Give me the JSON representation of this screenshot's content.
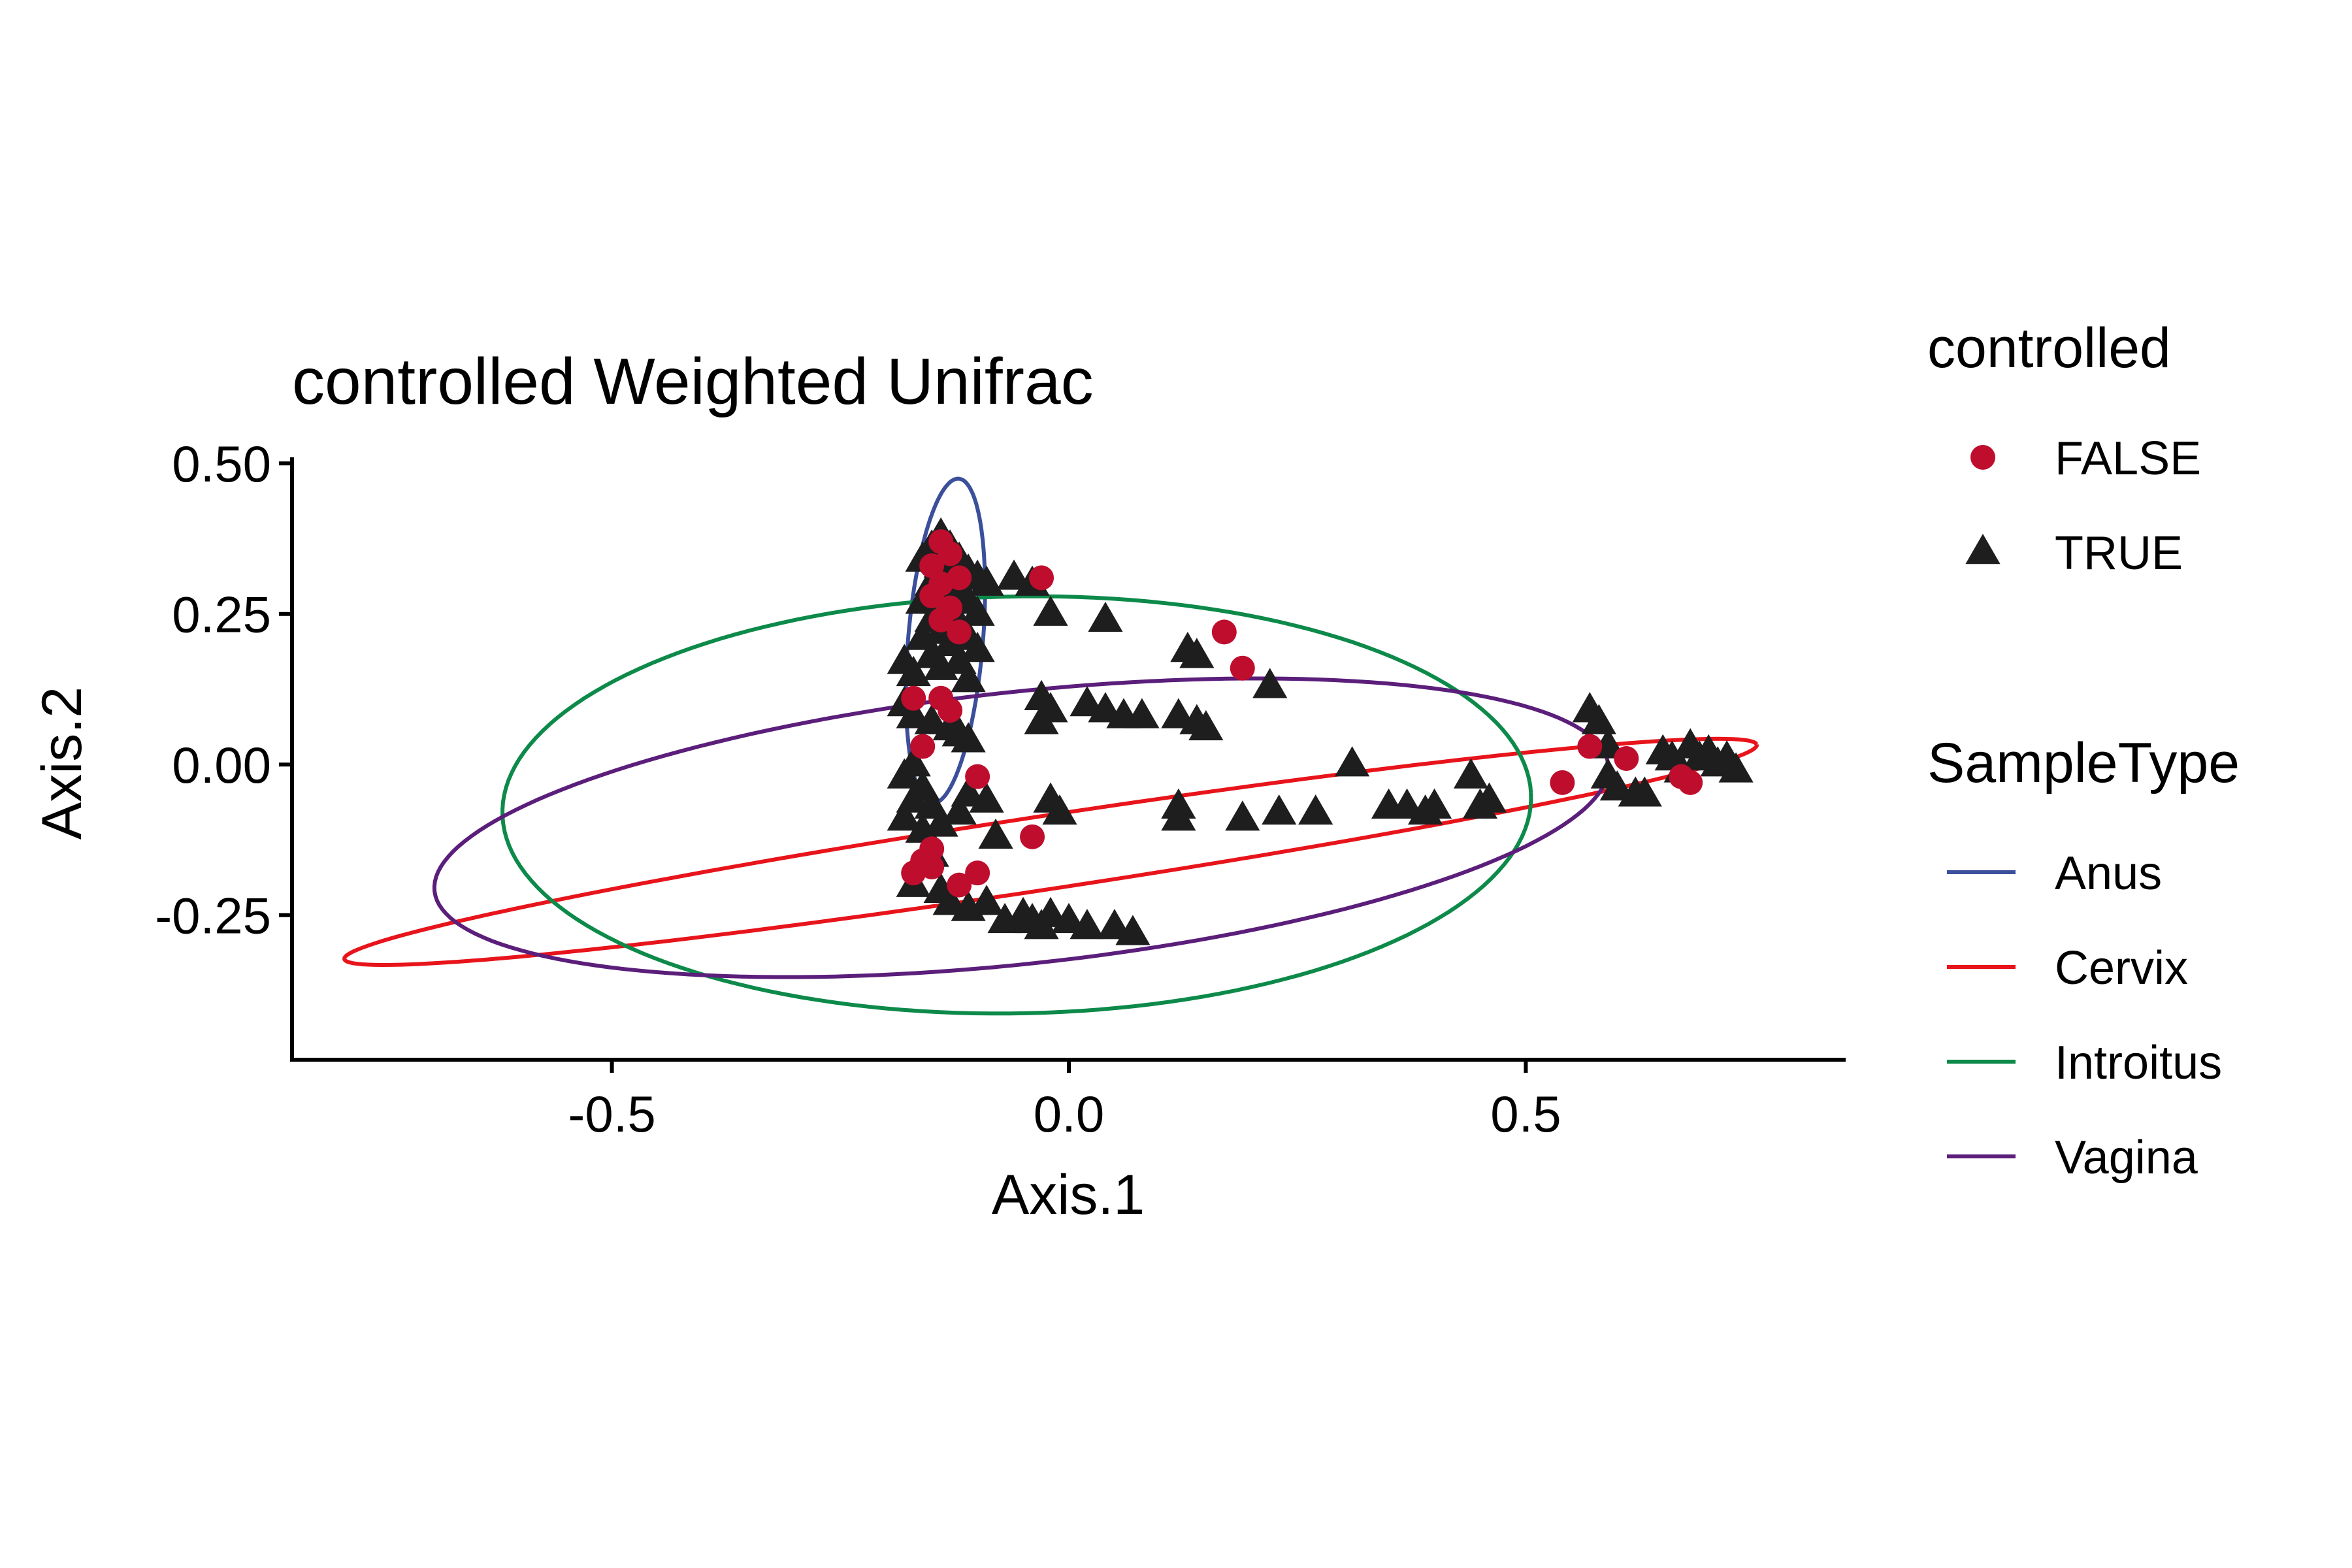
{
  "chart_data": {
    "type": "scatter",
    "title": "controlled Weighted Unifrac",
    "xlabel": "Axis.1",
    "ylabel": "Axis.2",
    "xlim": [
      -0.85,
      0.85
    ],
    "ylim": [
      -0.49,
      0.51
    ],
    "xticks": [
      -0.5,
      0.0,
      0.5
    ],
    "xtick_labels": [
      "-0.5",
      "0.0",
      "0.5"
    ],
    "yticks": [
      0.5,
      0.25,
      0.0,
      -0.25
    ],
    "ytick_labels": [
      "0.50",
      "0.25",
      "0.00",
      "-0.25"
    ],
    "grid": false,
    "colors": {
      "false_point": "#BE0D2D",
      "true_point": "#1E1E1E",
      "Anus": "#3B4F9B",
      "Cervix": "#E8141B",
      "Introitus": "#0D8A4A",
      "Vagina": "#5B1E7A"
    },
    "legend": {
      "shape_title": "controlled",
      "shape_entries": [
        {
          "label": "FALSE",
          "shape": "circle",
          "color": "#BE0D2D"
        },
        {
          "label": "TRUE",
          "shape": "triangle",
          "color": "#1E1E1E"
        }
      ],
      "color_title": "SampleType",
      "color_entries": [
        {
          "label": "Anus",
          "color": "#3B4F9B"
        },
        {
          "label": "Cervix",
          "color": "#E8141B"
        },
        {
          "label": "Introitus",
          "color": "#0D8A4A"
        },
        {
          "label": "Vagina",
          "color": "#5B1E7A"
        }
      ]
    },
    "ellipses": [
      {
        "name": "Anus",
        "cx": -0.135,
        "cy": 0.205,
        "rx": 0.041,
        "ry": 0.27,
        "angle": -3
      },
      {
        "name": "Cervix",
        "cx": -0.02,
        "cy": -0.145,
        "rx": 0.793,
        "ry": 0.06,
        "angle": 13
      },
      {
        "name": "Introitus",
        "cx": -0.057,
        "cy": -0.067,
        "rx": 0.563,
        "ry": 0.346,
        "angle": 2
      },
      {
        "name": "Vagina",
        "cx": -0.052,
        "cy": -0.105,
        "rx": 0.651,
        "ry": 0.224,
        "angle": 10
      }
    ],
    "series": [
      {
        "name": "FALSE",
        "shape": "circle",
        "points": [
          [
            -0.14,
            0.37
          ],
          [
            -0.13,
            0.35
          ],
          [
            -0.15,
            0.33
          ],
          [
            -0.12,
            0.31
          ],
          [
            -0.14,
            0.3
          ],
          [
            -0.15,
            0.28
          ],
          [
            -0.13,
            0.26
          ],
          [
            -0.14,
            0.24
          ],
          [
            -0.12,
            0.22
          ],
          [
            -0.03,
            0.31
          ],
          [
            0.17,
            0.22
          ],
          [
            0.19,
            0.16
          ],
          [
            -0.17,
            0.11
          ],
          [
            -0.14,
            0.11
          ],
          [
            -0.13,
            0.09
          ],
          [
            -0.16,
            0.03
          ],
          [
            -0.1,
            -0.02
          ],
          [
            -0.15,
            -0.14
          ],
          [
            -0.16,
            -0.16
          ],
          [
            -0.17,
            -0.18
          ],
          [
            -0.15,
            -0.17
          ],
          [
            -0.1,
            -0.18
          ],
          [
            -0.12,
            -0.2
          ],
          [
            -0.04,
            -0.12
          ],
          [
            0.54,
            -0.03
          ],
          [
            0.57,
            0.03
          ],
          [
            0.61,
            0.01
          ],
          [
            0.67,
            -0.02
          ],
          [
            0.68,
            -0.03
          ]
        ]
      },
      {
        "name": "TRUE",
        "shape": "triangle",
        "points": [
          [
            -0.14,
            0.38
          ],
          [
            -0.15,
            0.36
          ],
          [
            -0.13,
            0.36
          ],
          [
            -0.12,
            0.34
          ],
          [
            -0.16,
            0.34
          ],
          [
            -0.14,
            0.33
          ],
          [
            -0.11,
            0.32
          ],
          [
            -0.13,
            0.31
          ],
          [
            -0.15,
            0.3
          ],
          [
            -0.1,
            0.31
          ],
          [
            -0.09,
            0.3
          ],
          [
            -0.12,
            0.29
          ],
          [
            -0.14,
            0.28
          ],
          [
            -0.16,
            0.27
          ],
          [
            -0.11,
            0.27
          ],
          [
            -0.13,
            0.26
          ],
          [
            -0.1,
            0.25
          ],
          [
            -0.15,
            0.24
          ],
          [
            -0.12,
            0.23
          ],
          [
            -0.14,
            0.22
          ],
          [
            -0.11,
            0.21
          ],
          [
            -0.16,
            0.21
          ],
          [
            -0.13,
            0.2
          ],
          [
            -0.1,
            0.19
          ],
          [
            -0.15,
            0.18
          ],
          [
            -0.12,
            0.17
          ],
          [
            -0.18,
            0.17
          ],
          [
            -0.14,
            0.16
          ],
          [
            -0.17,
            0.15
          ],
          [
            -0.11,
            0.14
          ],
          [
            -0.06,
            0.31
          ],
          [
            -0.04,
            0.3
          ],
          [
            -0.02,
            0.25
          ],
          [
            0.04,
            0.24
          ],
          [
            0.13,
            0.19
          ],
          [
            0.14,
            0.18
          ],
          [
            0.22,
            0.13
          ],
          [
            -0.03,
            0.11
          ],
          [
            -0.02,
            0.09
          ],
          [
            0.02,
            0.1
          ],
          [
            0.04,
            0.09
          ],
          [
            0.06,
            0.08
          ],
          [
            0.08,
            0.08
          ],
          [
            0.12,
            0.08
          ],
          [
            0.14,
            0.07
          ],
          [
            0.15,
            0.06
          ],
          [
            -0.03,
            0.07
          ],
          [
            -0.18,
            0.1
          ],
          [
            -0.17,
            0.08
          ],
          [
            -0.15,
            0.07
          ],
          [
            -0.13,
            0.06
          ],
          [
            -0.12,
            0.05
          ],
          [
            -0.11,
            0.04
          ],
          [
            -0.17,
            0.0
          ],
          [
            -0.18,
            -0.02
          ],
          [
            -0.16,
            -0.04
          ],
          [
            -0.17,
            -0.06
          ],
          [
            -0.15,
            -0.07
          ],
          [
            -0.18,
            -0.09
          ],
          [
            -0.16,
            -0.11
          ],
          [
            -0.14,
            -0.1
          ],
          [
            -0.12,
            -0.08
          ],
          [
            -0.11,
            -0.05
          ],
          [
            -0.09,
            -0.06
          ],
          [
            -0.02,
            -0.06
          ],
          [
            -0.01,
            -0.08
          ],
          [
            -0.08,
            -0.12
          ],
          [
            -0.15,
            -0.15
          ],
          [
            -0.17,
            -0.2
          ],
          [
            -0.14,
            -0.21
          ],
          [
            -0.13,
            -0.23
          ],
          [
            -0.11,
            -0.24
          ],
          [
            -0.09,
            -0.23
          ],
          [
            -0.07,
            -0.26
          ],
          [
            -0.05,
            -0.25
          ],
          [
            -0.04,
            -0.26
          ],
          [
            -0.03,
            -0.27
          ],
          [
            -0.02,
            -0.25
          ],
          [
            0.0,
            -0.26
          ],
          [
            0.02,
            -0.27
          ],
          [
            0.05,
            -0.27
          ],
          [
            0.07,
            -0.28
          ],
          [
            0.12,
            -0.07
          ],
          [
            0.12,
            -0.09
          ],
          [
            0.19,
            -0.09
          ],
          [
            0.23,
            -0.08
          ],
          [
            0.27,
            -0.08
          ],
          [
            0.31,
            0.0
          ],
          [
            0.35,
            -0.07
          ],
          [
            0.37,
            -0.07
          ],
          [
            0.39,
            -0.08
          ],
          [
            0.4,
            -0.07
          ],
          [
            0.45,
            -0.07
          ],
          [
            0.44,
            -0.02
          ],
          [
            0.46,
            -0.06
          ],
          [
            0.57,
            0.09
          ],
          [
            0.58,
            0.07
          ],
          [
            0.59,
            0.03
          ],
          [
            0.59,
            -0.02
          ],
          [
            0.6,
            -0.04
          ],
          [
            0.62,
            -0.05
          ],
          [
            0.63,
            -0.05
          ],
          [
            0.65,
            0.02
          ],
          [
            0.66,
            0.01
          ],
          [
            0.67,
            -0.01
          ],
          [
            0.68,
            0.03
          ],
          [
            0.69,
            0.01
          ],
          [
            0.7,
            0.02
          ],
          [
            0.71,
            0.0
          ],
          [
            0.72,
            0.01
          ],
          [
            0.73,
            -0.01
          ]
        ]
      }
    ]
  }
}
